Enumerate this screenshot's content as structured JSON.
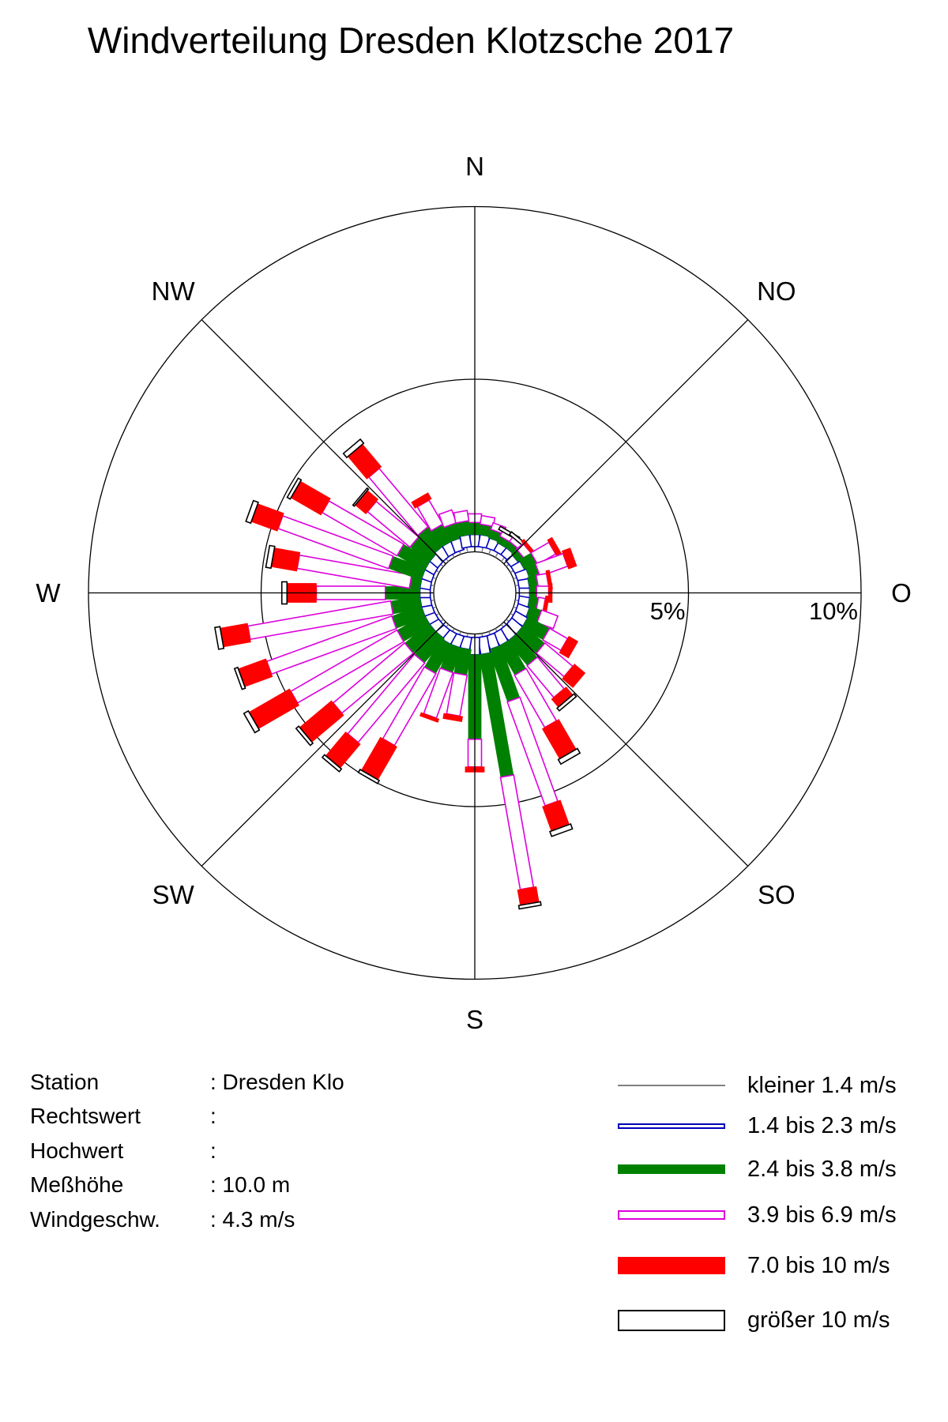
{
  "header": {
    "title": "Windverteilung Dresden Klotzsche 2017"
  },
  "info": {
    "rows": [
      {
        "label": "Station",
        "value": "Dresden Klo"
      },
      {
        "label": "Rechtswert",
        "value": ""
      },
      {
        "label": "Hochwert",
        "value": ""
      },
      {
        "label": "Meßhöhe",
        "value": "10.0 m"
      },
      {
        "label": "Windgeschw.",
        "value": "4.3 m/s"
      }
    ],
    "separator": ":"
  },
  "legend": {
    "entries": [
      {
        "label": "kleiner 1.4 m/s",
        "style": "line",
        "color": "#808080"
      },
      {
        "label": "1.4 bis 2.3 m/s",
        "style": "outline",
        "color": "#0000BB"
      },
      {
        "label": "2.4 bis 3.8 m/s",
        "style": "fill",
        "color": "#008000"
      },
      {
        "label": "3.9 bis 6.9 m/s",
        "style": "outline",
        "color": "#DD00DD"
      },
      {
        "label": "7.0 bis 10 m/s",
        "style": "fill",
        "color": "#FF0000"
      },
      {
        "label": "größer 10 m/s",
        "style": "outline",
        "color": "#000000"
      }
    ]
  },
  "chart_data": {
    "type": "wind_rose",
    "title": "Windverteilung Dresden Klotzsche 2017",
    "units": "percent frequency per 10° direction sector",
    "direction_convention": "0 = N, clockwise, bars start at calm circle",
    "rings_percent": [
      5,
      10
    ],
    "ring_labels": [
      "5%",
      "10%"
    ],
    "compass_labels": [
      "N",
      "NO",
      "O",
      "SO",
      "S",
      "SW",
      "W",
      "NW"
    ],
    "speed_classes": [
      {
        "label": "kleiner 1.4 m/s",
        "style": "line",
        "color": "#808080"
      },
      {
        "label": "1.4 bis 2.3 m/s",
        "style": "outline",
        "color": "#0000BB"
      },
      {
        "label": "2.4 bis 3.8 m/s",
        "style": "fill",
        "color": "#008000"
      },
      {
        "label": "3.9 bis 6.9 m/s",
        "style": "outline",
        "color": "#DD00DD"
      },
      {
        "label": "7.0 bis 10 m/s",
        "style": "fill",
        "color": "#FF0000"
      },
      {
        "label": "größer 10 m/s",
        "style": "outline",
        "color": "#000000"
      }
    ],
    "data": [
      {
        "dir": 0,
        "values": [
          0.15,
          0.35,
          0.35,
          0.25,
          0,
          0
        ]
      },
      {
        "dir": 10,
        "values": [
          0.15,
          0.35,
          0.3,
          0.25,
          0,
          0
        ]
      },
      {
        "dir": 20,
        "values": [
          0.15,
          0.3,
          0.25,
          0.2,
          0,
          0
        ]
      },
      {
        "dir": 30,
        "values": [
          0.15,
          0.25,
          0.2,
          0.15,
          0,
          0.1
        ]
      },
      {
        "dir": 40,
        "values": [
          0.15,
          0.25,
          0.2,
          0.15,
          0,
          0.1
        ]
      },
      {
        "dir": 50,
        "values": [
          0.1,
          0.25,
          0.2,
          0.25,
          0.1,
          0
        ]
      },
      {
        "dir": 60,
        "values": [
          0.1,
          0.3,
          0.4,
          0.6,
          0.15,
          0
        ]
      },
      {
        "dir": 70,
        "values": [
          0.1,
          0.35,
          0.3,
          0.85,
          0.25,
          0
        ]
      },
      {
        "dir": 80,
        "values": [
          0.1,
          0.3,
          0.25,
          0.3,
          0.1,
          0
        ]
      },
      {
        "dir": 90,
        "values": [
          0.1,
          0.3,
          0.2,
          0.35,
          0.1,
          0
        ]
      },
      {
        "dir": 100,
        "values": [
          0.1,
          0.3,
          0.25,
          0.2,
          0.1,
          0
        ]
      },
      {
        "dir": 110,
        "values": [
          0.1,
          0.35,
          0.35,
          0.5,
          0,
          0
        ]
      },
      {
        "dir": 120,
        "values": [
          0.1,
          0.4,
          0.7,
          0.6,
          0.3,
          0
        ]
      },
      {
        "dir": 130,
        "values": [
          0.1,
          0.4,
          0.8,
          1.05,
          0.4,
          0
        ]
      },
      {
        "dir": 140,
        "values": [
          0.1,
          0.4,
          0.9,
          1.2,
          0.3,
          0.1
        ]
      },
      {
        "dir": 150,
        "values": [
          0.1,
          0.4,
          0.95,
          1.75,
          1.0,
          0.15
        ]
      },
      {
        "dir": 160,
        "values": [
          0.1,
          0.4,
          1.6,
          3.2,
          0.75,
          0.15
        ]
      },
      {
        "dir": 170,
        "values": [
          0.1,
          0.5,
          3.6,
          3.3,
          0.45,
          0.1
        ]
      },
      {
        "dir": 180,
        "values": [
          0.1,
          0.5,
          2.45,
          0.8,
          0.15,
          0
        ]
      },
      {
        "dir": 190,
        "values": [
          0.1,
          0.35,
          0.75,
          1.2,
          0.15,
          0
        ]
      },
      {
        "dir": 200,
        "values": [
          0.1,
          0.35,
          0.75,
          1.4,
          0.1,
          0
        ]
      },
      {
        "dir": 210,
        "values": [
          0.1,
          0.35,
          0.95,
          2.4,
          1.1,
          0.1
        ]
      },
      {
        "dir": 220,
        "values": [
          0.1,
          0.3,
          0.9,
          3.0,
          0.9,
          0.1
        ]
      },
      {
        "dir": 230,
        "values": [
          0.1,
          0.3,
          0.9,
          2.7,
          1.2,
          0.1
        ]
      },
      {
        "dir": 240,
        "values": [
          0.1,
          0.3,
          0.9,
          3.55,
          1.35,
          0.15
        ]
      },
      {
        "dir": 250,
        "values": [
          0.1,
          0.3,
          0.9,
          3.85,
          0.85,
          0.1
        ]
      },
      {
        "dir": 260,
        "values": [
          0.1,
          0.3,
          0.85,
          4.2,
          0.8,
          0.15
        ]
      },
      {
        "dir": 270,
        "values": [
          0.1,
          0.3,
          1.0,
          2.0,
          0.85,
          0.15
        ]
      },
      {
        "dir": 280,
        "values": [
          0.1,
          0.3,
          0.3,
          3.3,
          0.75,
          0.15
        ]
      },
      {
        "dir": 290,
        "values": [
          0.1,
          0.3,
          1.0,
          3.4,
          0.8,
          0.15
        ]
      },
      {
        "dir": 300,
        "values": [
          0.1,
          0.3,
          0.9,
          2.5,
          1.0,
          0.1
        ]
      },
      {
        "dir": 310,
        "values": [
          0.1,
          0.3,
          0.7,
          1.6,
          0.4,
          0.05
        ]
      },
      {
        "dir": 320,
        "values": [
          0.1,
          0.35,
          0.7,
          2.2,
          0.85,
          0.15
        ]
      },
      {
        "dir": 330,
        "values": [
          0.1,
          0.35,
          0.55,
          0.8,
          0.2,
          0
        ]
      },
      {
        "dir": 340,
        "values": [
          0.1,
          0.35,
          0.45,
          0.4,
          0,
          0
        ]
      },
      {
        "dir": 350,
        "values": [
          0.15,
          0.35,
          0.4,
          0.3,
          0,
          0
        ]
      }
    ]
  }
}
